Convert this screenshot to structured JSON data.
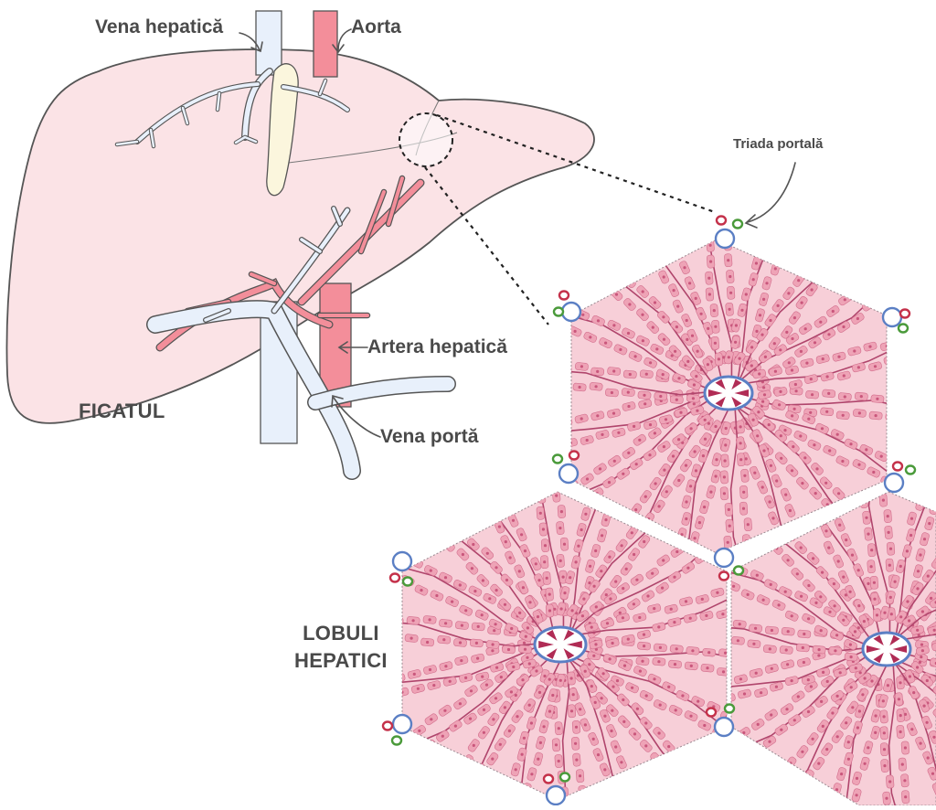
{
  "labels": {
    "vena_hepatica": "Vena hepatică",
    "aorta": "Aorta",
    "triada_portala": "Triada portală",
    "artera_hepatica": "Artera hepatică",
    "vena_porta": "Vena portă",
    "ficatul": "FICATUL",
    "lobuli_line1": "LOBULI",
    "lobuli_line2": "HEPATICI"
  },
  "colors": {
    "liver_fill": "#fbe3e6",
    "liver_outline": "#555555",
    "vein_fill": "#e8f0fb",
    "artery_fill": "#f38e9a",
    "lobule_fill": "#f7cfd8",
    "hepatocyte": "#eea3b6",
    "sinusoid": "#b0456c",
    "central_vein": "#5b7fc4",
    "bile_duct": "#4a9a3a",
    "portal_artery": "#c4314a",
    "label_text": "#4a4a4a"
  }
}
